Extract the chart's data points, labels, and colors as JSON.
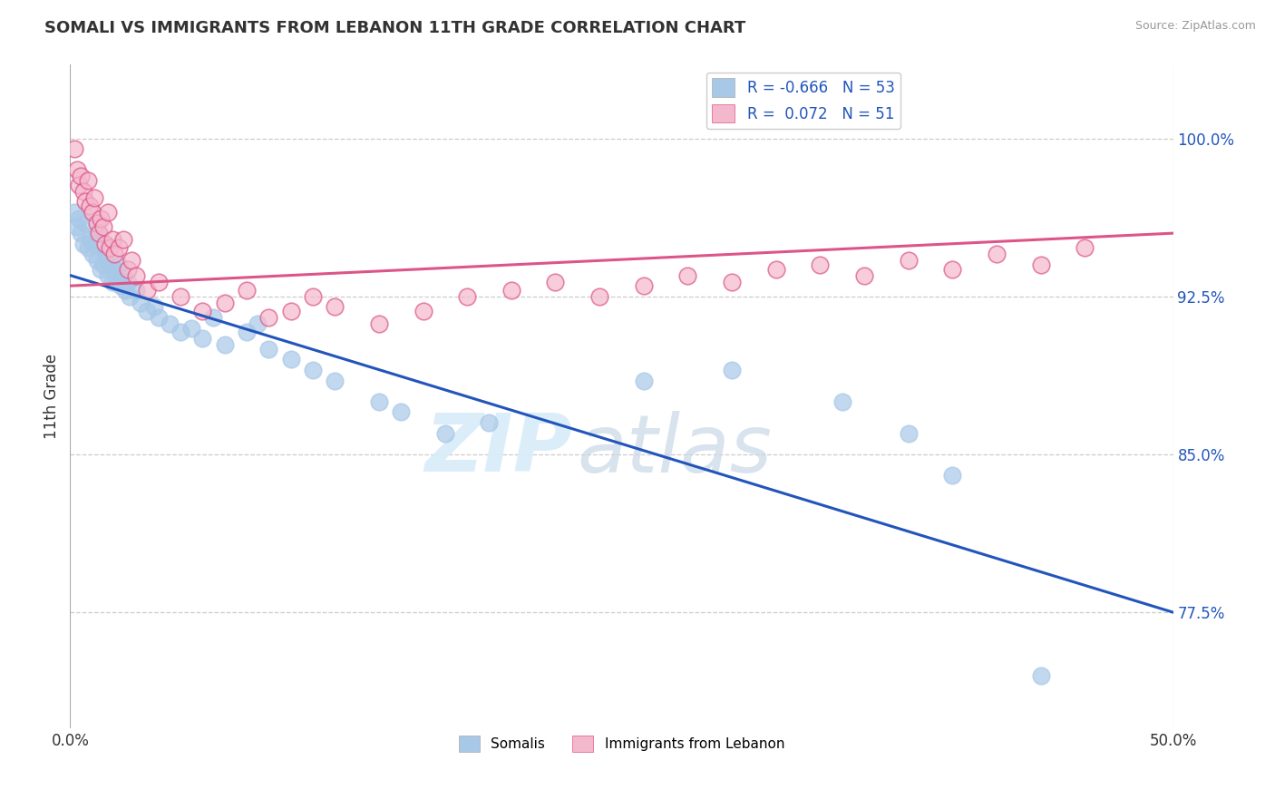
{
  "title": "SOMALI VS IMMIGRANTS FROM LEBANON 11TH GRADE CORRELATION CHART",
  "source": "Source: ZipAtlas.com",
  "ylabel": "11th Grade",
  "xlim": [
    0.0,
    50.0
  ],
  "ylim": [
    72.0,
    103.5
  ],
  "ytick_values": [
    77.5,
    85.0,
    92.5,
    100.0
  ],
  "legend_R1": "-0.666",
  "legend_N1": "53",
  "legend_R2": "0.072",
  "legend_N2": "51",
  "blue_color": "#a8c8e8",
  "pink_color": "#f4b8cc",
  "blue_line_color": "#2255bb",
  "pink_line_color": "#dd5588",
  "watermark_zip": "ZIP",
  "watermark_atlas": "atlas",
  "somali_x": [
    0.2,
    0.3,
    0.4,
    0.5,
    0.6,
    0.7,
    0.8,
    0.9,
    1.0,
    1.1,
    1.2,
    1.3,
    1.4,
    1.5,
    1.6,
    1.7,
    1.8,
    1.9,
    2.0,
    2.1,
    2.2,
    2.3,
    2.4,
    2.5,
    2.6,
    2.7,
    3.0,
    3.2,
    3.5,
    3.8,
    4.0,
    4.5,
    5.0,
    5.5,
    6.0,
    6.5,
    7.0,
    8.0,
    8.5,
    9.0,
    10.0,
    11.0,
    12.0,
    14.0,
    15.0,
    17.0,
    19.0,
    26.0,
    30.0,
    35.0,
    38.0,
    40.0,
    44.0
  ],
  "somali_y": [
    96.5,
    95.8,
    96.2,
    95.5,
    95.0,
    96.0,
    94.8,
    95.2,
    94.5,
    95.0,
    94.2,
    95.5,
    93.8,
    94.0,
    94.5,
    93.5,
    94.0,
    93.2,
    93.8,
    93.5,
    94.0,
    93.0,
    93.5,
    92.8,
    93.2,
    92.5,
    92.8,
    92.2,
    91.8,
    92.0,
    91.5,
    91.2,
    90.8,
    91.0,
    90.5,
    91.5,
    90.2,
    90.8,
    91.2,
    90.0,
    89.5,
    89.0,
    88.5,
    87.5,
    87.0,
    86.0,
    86.5,
    88.5,
    89.0,
    87.5,
    86.0,
    84.0,
    74.5
  ],
  "lebanon_x": [
    0.2,
    0.3,
    0.4,
    0.5,
    0.6,
    0.7,
    0.8,
    0.9,
    1.0,
    1.1,
    1.2,
    1.3,
    1.4,
    1.5,
    1.6,
    1.7,
    1.8,
    1.9,
    2.0,
    2.2,
    2.4,
    2.6,
    2.8,
    3.0,
    3.5,
    4.0,
    5.0,
    6.0,
    7.0,
    8.0,
    9.0,
    10.0,
    11.0,
    12.0,
    14.0,
    16.0,
    18.0,
    20.0,
    22.0,
    24.0,
    26.0,
    28.0,
    30.0,
    32.0,
    34.0,
    36.0,
    38.0,
    40.0,
    42.0,
    44.0,
    46.0
  ],
  "lebanon_y": [
    99.5,
    98.5,
    97.8,
    98.2,
    97.5,
    97.0,
    98.0,
    96.8,
    96.5,
    97.2,
    96.0,
    95.5,
    96.2,
    95.8,
    95.0,
    96.5,
    94.8,
    95.2,
    94.5,
    94.8,
    95.2,
    93.8,
    94.2,
    93.5,
    92.8,
    93.2,
    92.5,
    91.8,
    92.2,
    92.8,
    91.5,
    91.8,
    92.5,
    92.0,
    91.2,
    91.8,
    92.5,
    92.8,
    93.2,
    92.5,
    93.0,
    93.5,
    93.2,
    93.8,
    94.0,
    93.5,
    94.2,
    93.8,
    94.5,
    94.0,
    94.8
  ]
}
